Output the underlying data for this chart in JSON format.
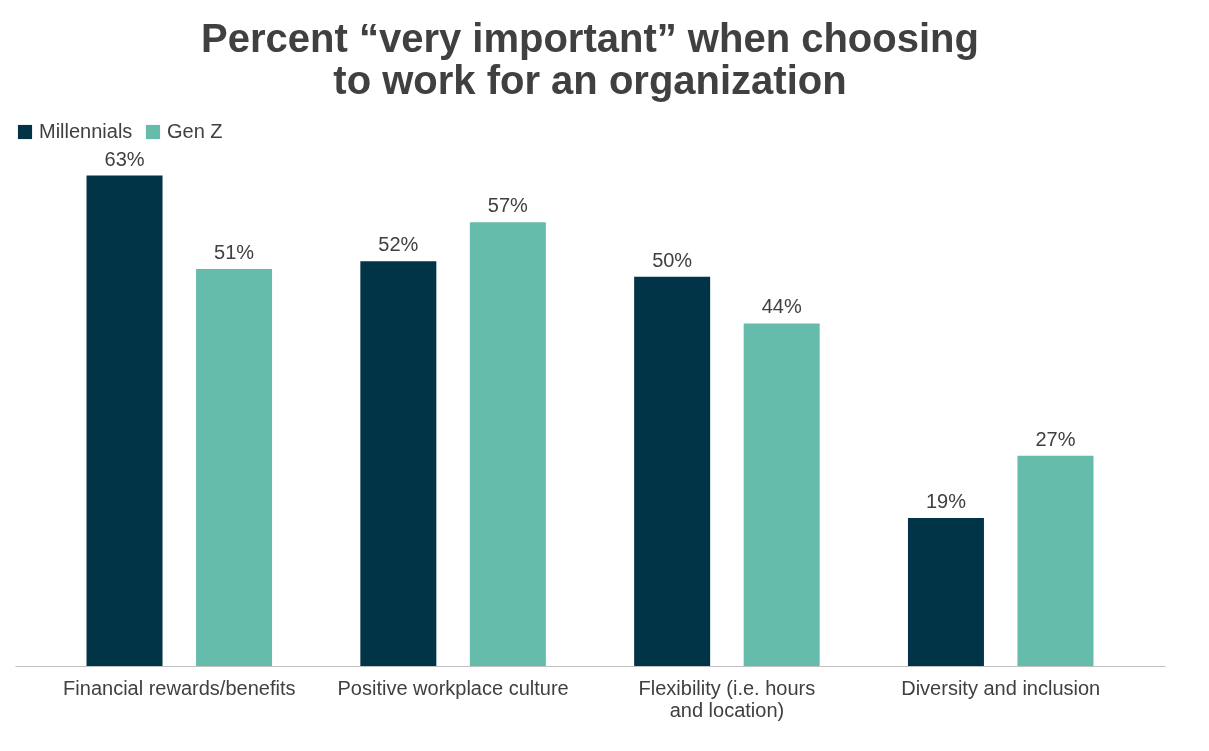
{
  "chart_data": {
    "type": "bar",
    "title": "Percent “very important” when choosing to work for an organization",
    "categories": [
      "Financial rewards/benefits",
      "Positive workplace culture",
      "Flexibility (i.e. hours and location)",
      "Diversity and inclusion"
    ],
    "series": [
      {
        "name": "Millennials",
        "color": "#023447",
        "values": [
          63,
          52,
          50,
          19
        ],
        "value_labels": [
          "63%",
          "52%",
          "50%",
          "19%"
        ]
      },
      {
        "name": "Gen Z",
        "color": "#65bcaa",
        "values": [
          51,
          57,
          44,
          27
        ],
        "value_labels": [
          "51%",
          "57%",
          "44%",
          "27%"
        ]
      }
    ],
    "legend": "top",
    "grid": false
  }
}
